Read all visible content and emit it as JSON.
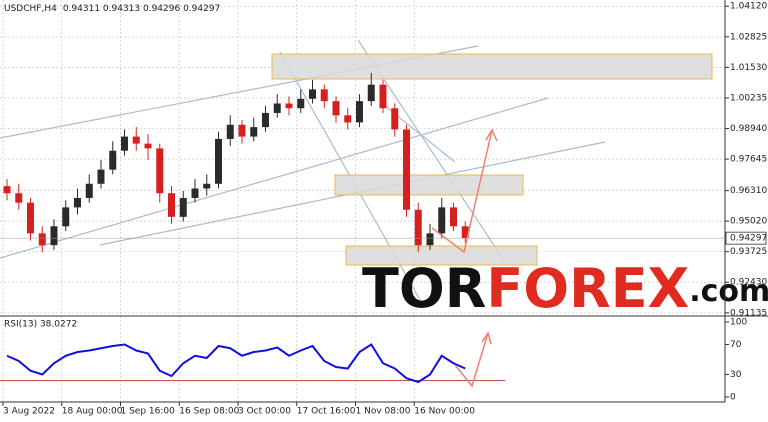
{
  "chart_data": [
    {
      "type": "candlestick",
      "title": "USDCHF,H4",
      "subtitle": "0.94311 0.94313 0.94296 0.94297",
      "up_color": "#2b2b2b",
      "down_color": "#d62020",
      "open": [
        0.965,
        0.962,
        0.958,
        0.945,
        0.94,
        0.948,
        0.956,
        0.96,
        0.966,
        0.972,
        0.98,
        0.986,
        0.983,
        0.981,
        0.962,
        0.952,
        0.96,
        0.964,
        0.966,
        0.985,
        0.991,
        0.986,
        0.99,
        0.996,
        1.0,
        0.998,
        1.002,
        1.006,
        1.001,
        0.995,
        0.992,
        1.001,
        1.008,
        0.998,
        0.989,
        0.955,
        0.94,
        0.945,
        0.956,
        0.948
      ],
      "high": [
        0.968,
        0.966,
        0.96,
        0.948,
        0.951,
        0.959,
        0.964,
        0.97,
        0.976,
        0.984,
        0.989,
        0.99,
        0.987,
        0.983,
        0.965,
        0.963,
        0.968,
        0.97,
        0.988,
        0.995,
        0.993,
        0.994,
        0.999,
        1.004,
        1.003,
        1.006,
        1.01,
        1.008,
        1.003,
        0.998,
        1.004,
        1.013,
        1.01,
        1.0,
        0.991,
        0.958,
        0.949,
        0.96,
        0.958,
        0.95
      ],
      "low": [
        0.959,
        0.955,
        0.942,
        0.937,
        0.938,
        0.946,
        0.953,
        0.958,
        0.964,
        0.97,
        0.978,
        0.98,
        0.976,
        0.958,
        0.949,
        0.95,
        0.958,
        0.961,
        0.964,
        0.982,
        0.983,
        0.984,
        0.988,
        0.994,
        0.995,
        0.996,
        1.0,
        0.998,
        0.992,
        0.989,
        0.99,
        0.999,
        0.996,
        0.986,
        0.952,
        0.937,
        0.938,
        0.943,
        0.946,
        0.941
      ],
      "close": [
        0.962,
        0.958,
        0.945,
        0.94,
        0.948,
        0.956,
        0.96,
        0.966,
        0.972,
        0.98,
        0.986,
        0.983,
        0.981,
        0.962,
        0.952,
        0.96,
        0.964,
        0.966,
        0.985,
        0.991,
        0.986,
        0.99,
        0.996,
        1.0,
        0.998,
        1.002,
        1.006,
        1.001,
        0.995,
        0.992,
        1.001,
        1.008,
        0.998,
        0.989,
        0.955,
        0.94,
        0.945,
        0.956,
        0.948,
        0.943
      ],
      "last_price": 0.94297,
      "ylim": [
        0.91,
        1.043
      ],
      "yticks": [
        {
          "value": 1.0412,
          "label": "1.04120"
        },
        {
          "value": 1.02825,
          "label": "1.02825"
        },
        {
          "value": 1.0153,
          "label": "1.01530"
        },
        {
          "value": 1.00235,
          "label": "1.00235"
        },
        {
          "value": 0.9894,
          "label": "0.98940"
        },
        {
          "value": 0.97645,
          "label": "0.97645"
        },
        {
          "value": 0.9631,
          "label": "0.96310"
        },
        {
          "value": 0.9502,
          "label": "0.95020"
        },
        {
          "value": 0.93725,
          "label": "0.93725"
        },
        {
          "value": 0.9243,
          "label": "0.92430"
        },
        {
          "value": 0.91135,
          "label": "0.91135"
        }
      ],
      "grid": true
    },
    {
      "type": "line",
      "title": "RSI(13) 38.0272",
      "color": "#1010e0",
      "categories": [
        "3 Aug 2022",
        null,
        null,
        null,
        null,
        "18 Aug 00:00",
        null,
        null,
        null,
        null,
        "1 Sep 16:00",
        null,
        null,
        null,
        null,
        "16 Sep 08:00",
        null,
        null,
        null,
        null,
        "3 Oct 00:00",
        null,
        null,
        null,
        null,
        "17 Oct 16:00",
        null,
        null,
        null,
        null,
        "1 Nov 08:00",
        null,
        null,
        null,
        null,
        "16 Nov 00:00",
        null,
        null,
        null,
        null
      ],
      "values": [
        55,
        48,
        35,
        30,
        45,
        55,
        60,
        62,
        65,
        68,
        70,
        62,
        58,
        35,
        28,
        45,
        55,
        52,
        68,
        65,
        55,
        60,
        62,
        66,
        55,
        62,
        68,
        48,
        40,
        38,
        60,
        70,
        45,
        38,
        25,
        20,
        30,
        55,
        45,
        38
      ],
      "level": 22,
      "level_color": "#c0504d",
      "ylim": [
        0,
        100
      ],
      "yticks": [
        0,
        30,
        70,
        100
      ]
    }
  ],
  "logo": {
    "tor": "TOR",
    "forex": "FOREX",
    "com": ".com"
  }
}
